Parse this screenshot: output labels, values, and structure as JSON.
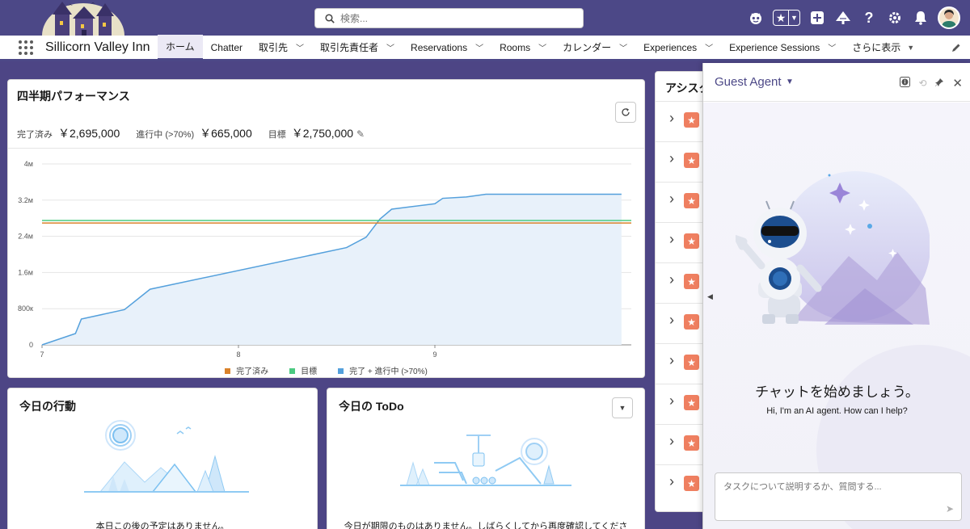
{
  "header": {
    "search_placeholder": "検索...",
    "colors": {
      "header_bg": "#4c4887",
      "accent": "#4c4887"
    }
  },
  "nav": {
    "app_name": "Sillicorn Valley Inn",
    "tabs": [
      {
        "label": "ホーム",
        "active": true,
        "dropdown": false
      },
      {
        "label": "Chatter",
        "active": false,
        "dropdown": false
      },
      {
        "label": "取引先",
        "active": false,
        "dropdown": true
      },
      {
        "label": "取引先責任者",
        "active": false,
        "dropdown": true
      },
      {
        "label": "Reservations",
        "active": false,
        "dropdown": true
      },
      {
        "label": "Rooms",
        "active": false,
        "dropdown": true
      },
      {
        "label": "カレンダー",
        "active": false,
        "dropdown": true
      },
      {
        "label": "Experiences",
        "active": false,
        "dropdown": true
      },
      {
        "label": "Experience Sessions",
        "active": false,
        "dropdown": true
      }
    ],
    "more_label": "さらに表示"
  },
  "performance": {
    "title": "四半期パフォーマンス",
    "closed_label": "完了済み",
    "closed_value": "￥2,695,000",
    "open_label": "進行中 (>70%)",
    "open_value": "￥665,000",
    "goal_label": "目標",
    "goal_value": "￥2,750,000"
  },
  "chart_data": {
    "type": "area",
    "x_ticks": [
      "7",
      "8",
      "9"
    ],
    "y_ticks": [
      "0",
      "800к",
      "1.6м",
      "2.4м",
      "3.2м",
      "4м"
    ],
    "ylim": [
      0,
      4000000
    ],
    "xlim": [
      7,
      10.0
    ],
    "series": [
      {
        "name": "完了済み",
        "color": "#d9822b",
        "kind": "hline",
        "value": 2695000
      },
      {
        "name": "目標",
        "color": "#4bca81",
        "kind": "hline",
        "value": 2750000
      },
      {
        "name": "完了 + 進行中 (>70%)",
        "color": "#54a0dc",
        "kind": "area",
        "x": [
          7.0,
          7.17,
          7.2,
          7.42,
          7.55,
          8.55,
          8.65,
          8.72,
          8.78,
          9.0,
          9.04,
          9.16,
          9.26,
          9.95
        ],
        "y": [
          0,
          250000,
          570000,
          780000,
          1230000,
          2150000,
          2380000,
          2780000,
          3000000,
          3120000,
          3240000,
          3270000,
          3330000,
          3330000
        ]
      }
    ]
  },
  "events": {
    "title": "今日の行動",
    "empty_message": "本日この後の予定はありません。"
  },
  "todo": {
    "title": "今日の ToDo",
    "empty_message": "今日が期限のものはありません。しばらくしてから再度確認してくださ"
  },
  "assistant": {
    "title": "アシスタ",
    "row_count_visible": 10
  },
  "agent": {
    "title": "Guest Agent",
    "welcome_title": "チャットを始めましょう。",
    "welcome_sub": "Hi, I'm an AI agent. How can I help?",
    "input_placeholder": "タスクについて説明するか、質問する..."
  }
}
